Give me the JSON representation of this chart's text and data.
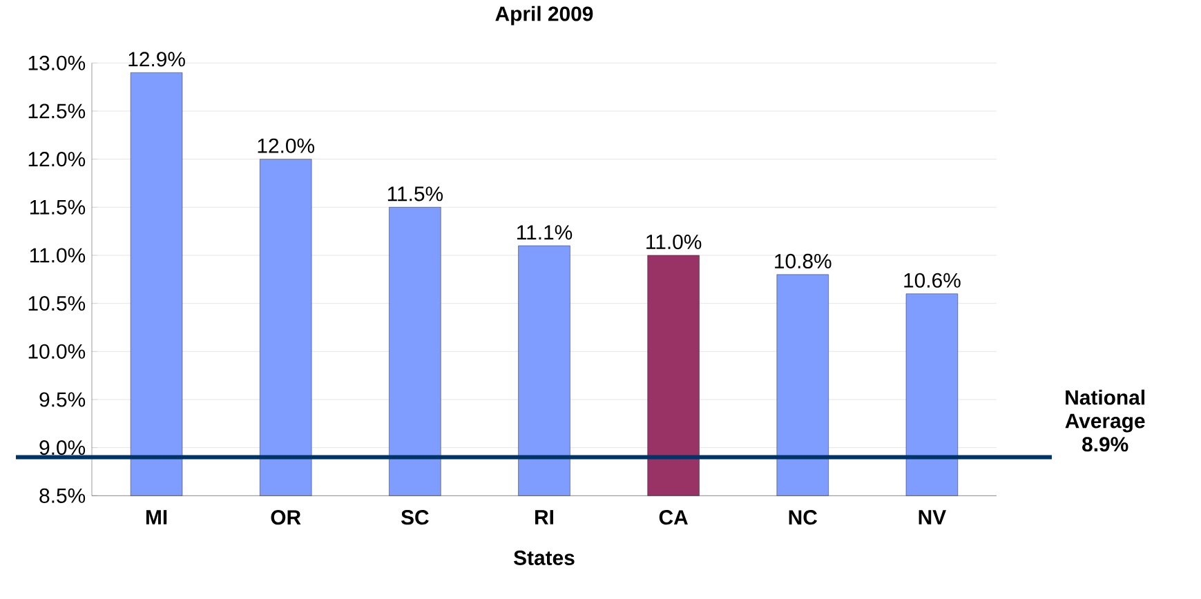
{
  "chart_data": {
    "type": "bar",
    "title": "April 2009",
    "xlabel": "States",
    "categories": [
      "MI",
      "OR",
      "SC",
      "RI",
      "CA",
      "NC",
      "NV"
    ],
    "values": [
      12.9,
      12.0,
      11.5,
      11.1,
      11.0,
      10.8,
      10.6
    ],
    "value_labels": [
      "12.9%",
      "12.0%",
      "11.5%",
      "11.1%",
      "11.0%",
      "10.8%",
      "10.6%"
    ],
    "colors": [
      "#7f9cff",
      "#7f9cff",
      "#7f9cff",
      "#7f9cff",
      "#993366",
      "#7f9cff",
      "#7f9cff"
    ],
    "ylim": [
      8.5,
      13.0
    ],
    "yticks": [
      {
        "value": 8.5,
        "label": "8.5%"
      },
      {
        "value": 9.0,
        "label": "9.0%"
      },
      {
        "value": 9.5,
        "label": "9.5%"
      },
      {
        "value": 10.0,
        "label": "10.0%"
      },
      {
        "value": 10.5,
        "label": "10.5%"
      },
      {
        "value": 11.0,
        "label": "11.0%"
      },
      {
        "value": 11.5,
        "label": "11.5%"
      },
      {
        "value": 12.0,
        "label": "12.0%"
      },
      {
        "value": 12.5,
        "label": "12.5%"
      },
      {
        "value": 13.0,
        "label": "13.0%"
      }
    ],
    "grid": "y",
    "ref_lines": [
      {
        "axis": "y",
        "value": 8.9,
        "label": "National Average 8.9%",
        "color": "#003366"
      }
    ]
  }
}
